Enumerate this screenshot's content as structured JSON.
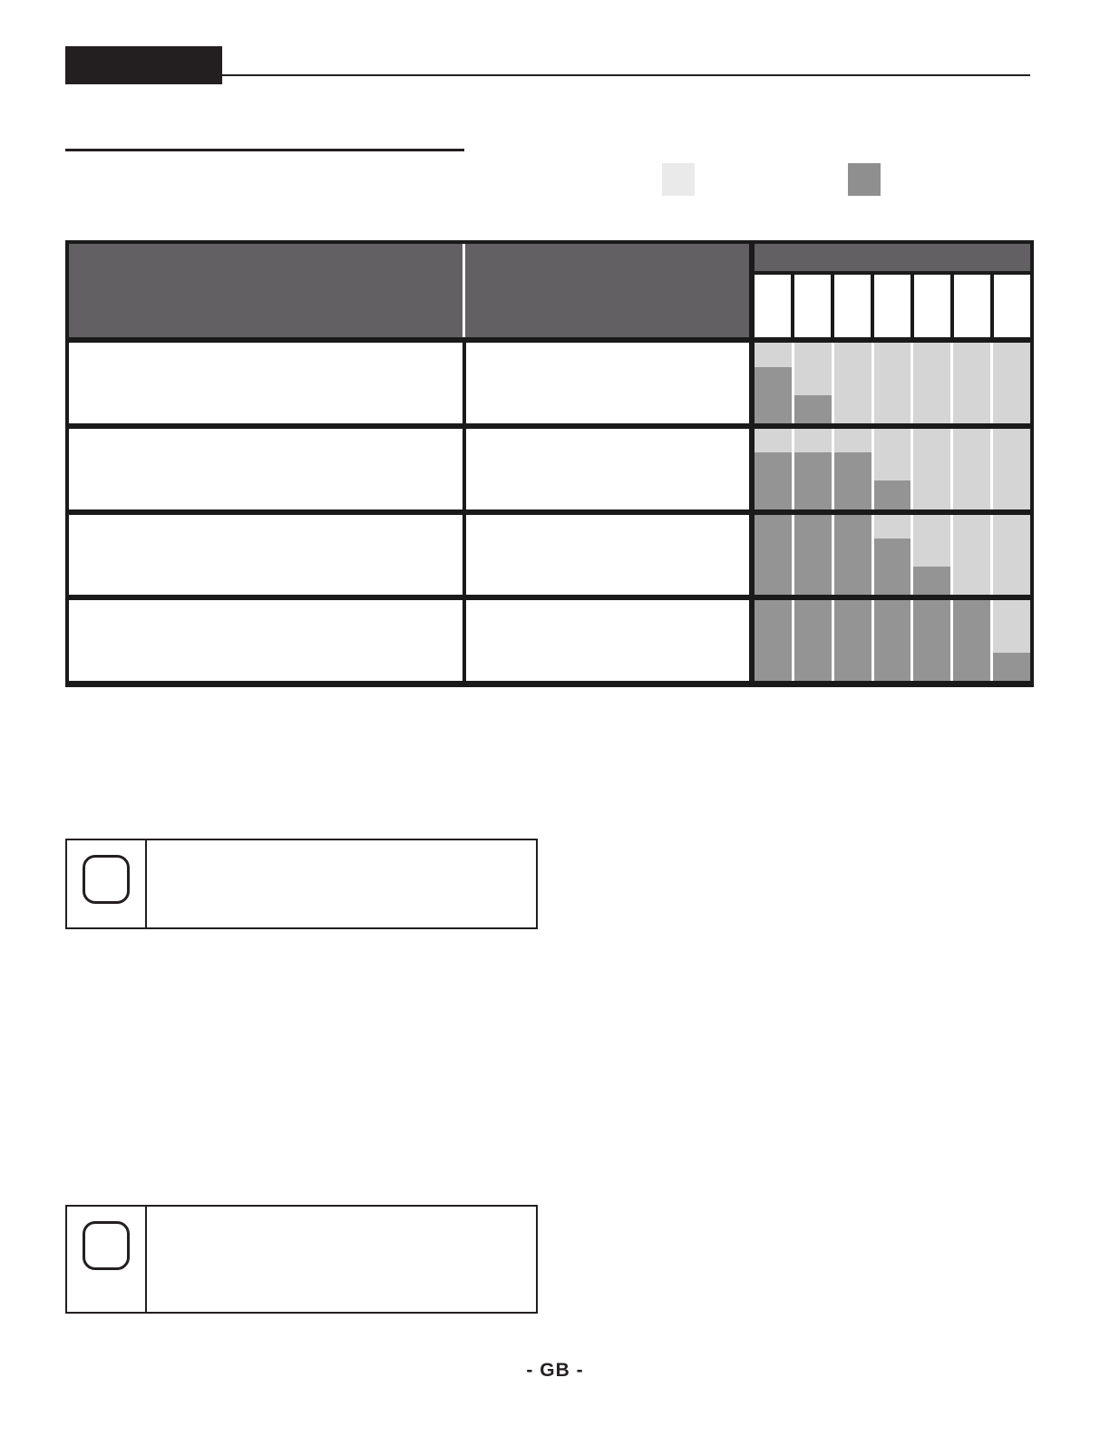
{
  "page": {
    "footer_label": "- GB -"
  },
  "colors": {
    "ink": "#231f20",
    "grid_black": "#1a1a1a",
    "table_header_bg": "#626062",
    "cell_bg": "#d5d5d5",
    "bar": "#949494"
  },
  "legend": {
    "swatches": [
      {
        "name": "inactive-level-swatch",
        "color": "#eaeaea"
      },
      {
        "name": "active-level-swatch",
        "color": "#8f8f8f"
      }
    ]
  },
  "table": {
    "left_header_cells": 2,
    "level_columns": 7,
    "rows": [
      {
        "levels": [
          70,
          35,
          0,
          0,
          0,
          0,
          0
        ]
      },
      {
        "levels": [
          70,
          70,
          70,
          35,
          0,
          0,
          0
        ]
      },
      {
        "levels": [
          100,
          100,
          100,
          70,
          35,
          0,
          0
        ]
      },
      {
        "levels": [
          100,
          100,
          100,
          100,
          100,
          100,
          35
        ]
      }
    ]
  },
  "notes": [
    {
      "icon": "rounded-square-icon",
      "text": ""
    },
    {
      "icon": "rounded-square-icon",
      "text": ""
    }
  ]
}
